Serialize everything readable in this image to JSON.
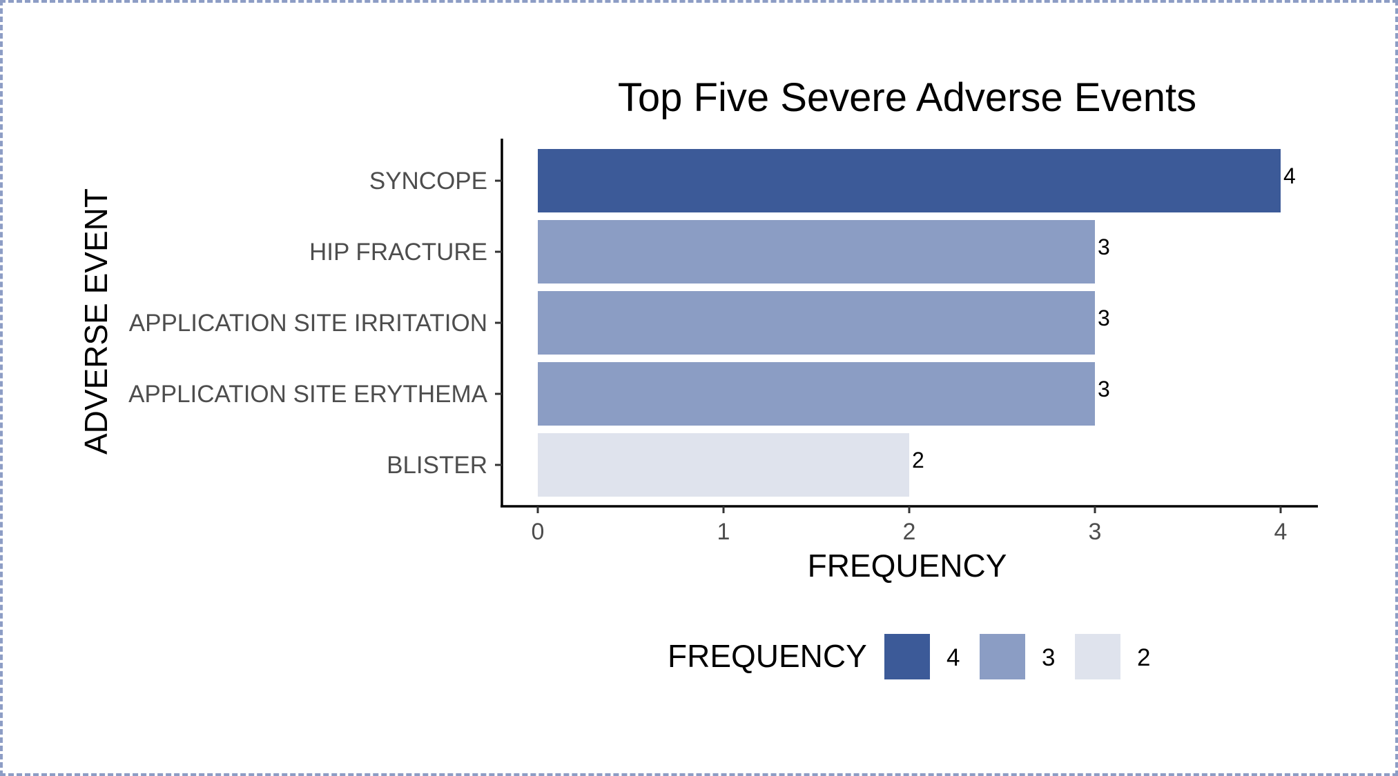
{
  "chart_data": {
    "type": "bar",
    "orientation": "horizontal",
    "title": "Top Five Severe Adverse Events",
    "xlabel": "FREQUENCY",
    "ylabel": "ADVERSE EVENT",
    "categories": [
      "SYNCOPE",
      "HIP FRACTURE",
      "APPLICATION SITE IRRITATION",
      "APPLICATION SITE ERYTHEMA",
      "BLISTER"
    ],
    "values": [
      4,
      3,
      3,
      3,
      2
    ],
    "data_labels": [
      "4",
      "3",
      "3",
      "3",
      "2"
    ],
    "xlim": [
      0,
      4
    ],
    "x_ticks": [
      "0",
      "1",
      "2",
      "3",
      "4"
    ],
    "grid": false,
    "legend": {
      "title": "FREQUENCY",
      "placement": "bottom",
      "entries": [
        {
          "label": "4",
          "color": "#3c5a98"
        },
        {
          "label": "3",
          "color": "#8b9dc4"
        },
        {
          "label": "2",
          "color": "#dfe3ed"
        }
      ]
    },
    "colors": {
      "4": "#3c5a98",
      "3": "#8b9dc4",
      "2": "#dfe3ed"
    }
  },
  "frame": {
    "border_color": "#8d9dc5"
  }
}
